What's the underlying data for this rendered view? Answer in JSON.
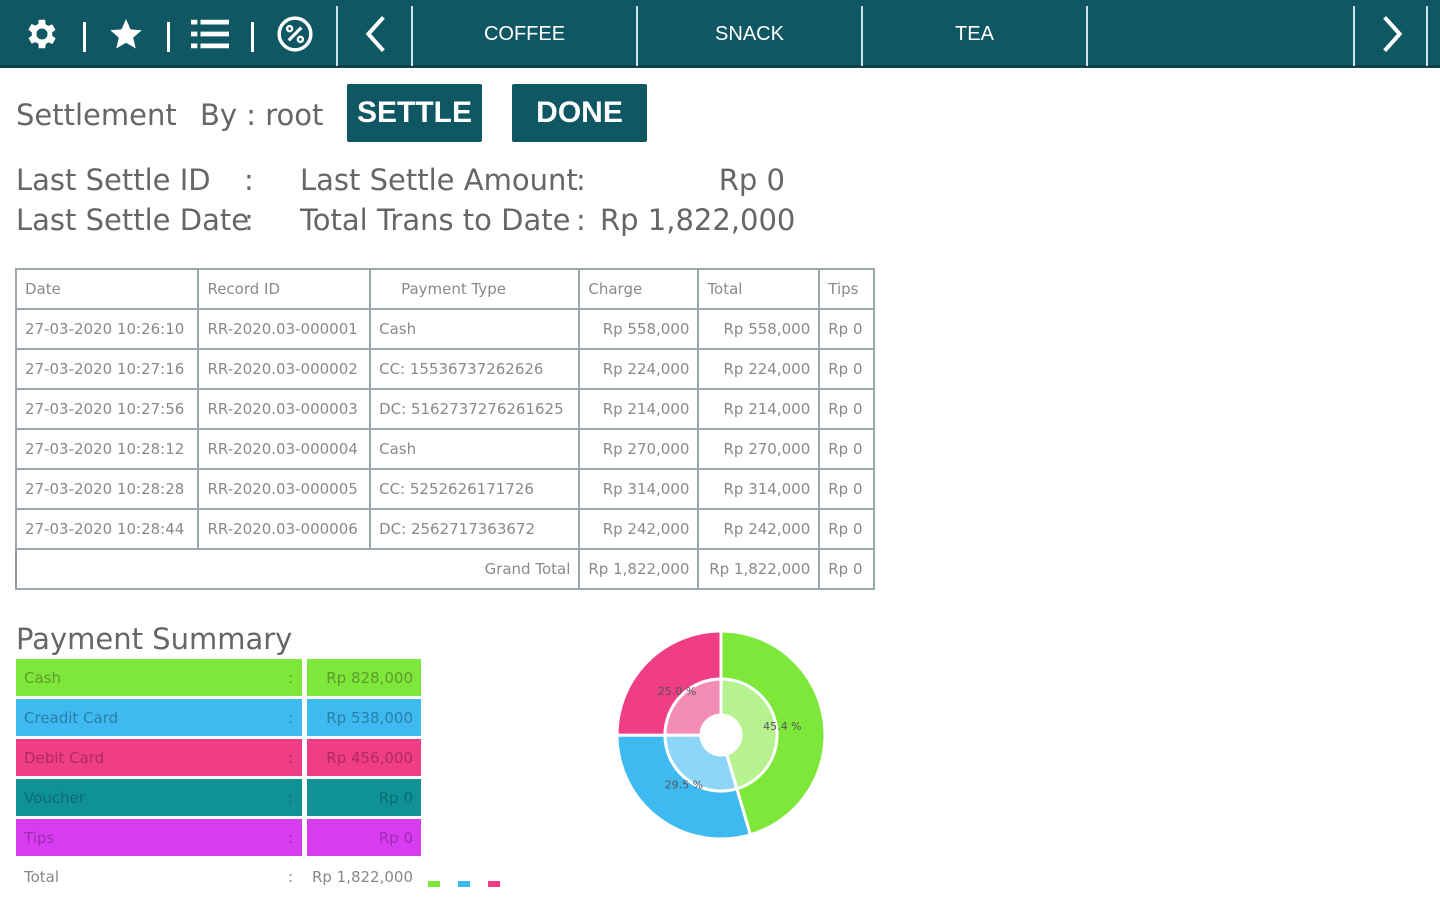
{
  "toolbar": {
    "icons": [
      "gear-icon",
      "star-icon",
      "list-icon",
      "percent-icon"
    ],
    "categories": [
      "COFFEE",
      "SNACK",
      "TEA"
    ]
  },
  "settlement": {
    "title": "Settlement",
    "by": "By : root",
    "settle_button": "SETTLE",
    "done_button": "DONE"
  },
  "info": {
    "last_settle_id_label": "Last Settle ID",
    "last_settle_date_label": "Last Settle Date",
    "colon": ":",
    "last_settle_amount_label": "Last Settle Amount",
    "total_trans_label": "Total Trans to Date",
    "last_settle_amount": "Rp  0",
    "total_trans": "Rp 1,822,000"
  },
  "table": {
    "headers": [
      "Date",
      "Record ID",
      "Payment Type",
      "Charge",
      "Total",
      "Tips"
    ],
    "rows": [
      [
        "27-03-2020 10:26:10",
        "RR-2020.03-000001",
        "Cash",
        "Rp 558,000",
        "Rp 558,000",
        "Rp 0"
      ],
      [
        "27-03-2020 10:27:16",
        "RR-2020.03-000002",
        "CC: 1553673726262​6",
        "Rp 224,000",
        "Rp 224,000",
        "Rp 0"
      ],
      [
        "27-03-2020 10:27:56",
        "RR-2020.03-000003",
        "DC: 5162737276261625",
        "Rp 214,000",
        "Rp 214,000",
        "Rp 0"
      ],
      [
        "27-03-2020 10:28:12",
        "RR-2020.03-000004",
        "Cash",
        "Rp 270,000",
        "Rp 270,000",
        "Rp 0"
      ],
      [
        "27-03-2020 10:28:28",
        "RR-2020.03-000005",
        "CC: 5252626171726",
        "Rp 314,000",
        "Rp 314,000",
        "Rp 0"
      ],
      [
        "27-03-2020 10:28:44",
        "RR-2020.03-000006",
        "DC: 2562717363672",
        "Rp 242,000",
        "Rp 242,000",
        "Rp 0"
      ]
    ],
    "grand_total_label": "Grand Total",
    "grand_total": [
      "Rp 1,822,000",
      "Rp 1,822,000",
      "Rp 0"
    ]
  },
  "summary": {
    "title": "Payment Summary",
    "rows": [
      {
        "name": "Cash",
        "amount": "Rp 828,000",
        "color": "#7ee83a",
        "text": "#5f9a2e"
      },
      {
        "name": "Creadit Card",
        "amount": "Rp 538,000",
        "color": "#3fbaf0",
        "text": "#2a7fa8"
      },
      {
        "name": "Debit Card",
        "amount": "Rp 456,000",
        "color": "#ef3d86",
        "text": "#b02a62"
      },
      {
        "name": "Voucher",
        "amount": "Rp 0",
        "color": "#0f9196",
        "text": "#0b6d70"
      },
      {
        "name": "Tips",
        "amount": "Rp 0",
        "color": "#d73cf0",
        "text": "#9e2cb1"
      }
    ],
    "total_label": "Total",
    "total_amount": "Rp 1,822,000"
  },
  "chart_data": {
    "type": "pie",
    "slices": [
      {
        "name": "Cash",
        "value": 45.4,
        "label": "45.4 %",
        "color": "#7ee83a",
        "inner": "#b6f28e"
      },
      {
        "name": "Creadit Card",
        "value": 29.5,
        "label": "29.5 %",
        "color": "#3fbaf0",
        "inner": "#8ed6f7"
      },
      {
        "name": "Debit Card",
        "value": 25.0,
        "label": "25.0 %",
        "color": "#ef3d86",
        "inner": "#f48db6"
      }
    ],
    "legend_colors": [
      "#7ee83a",
      "#3fbaf0",
      "#ef3d86"
    ]
  }
}
